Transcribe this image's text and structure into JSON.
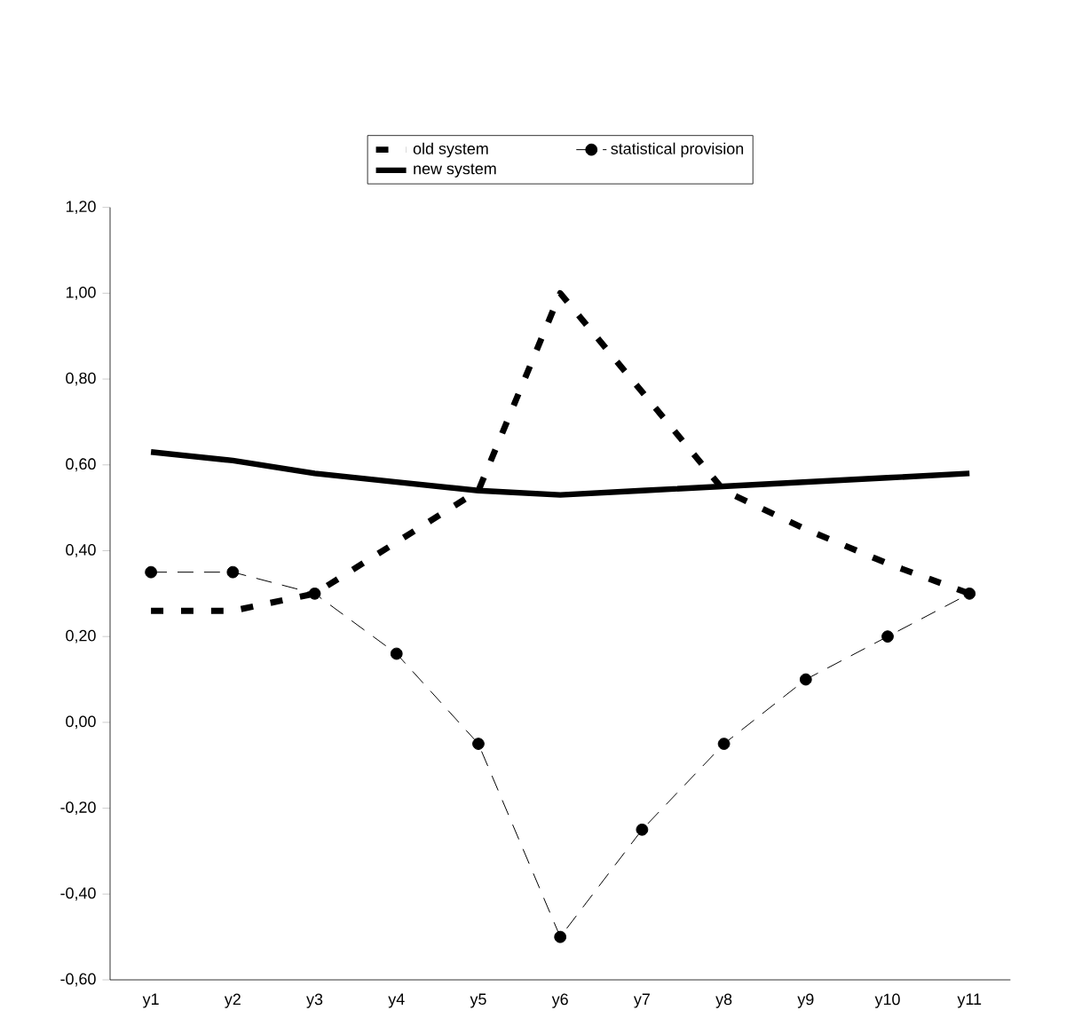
{
  "chart_data": {
    "type": "line",
    "categories": [
      "y1",
      "y2",
      "y3",
      "y4",
      "y5",
      "y6",
      "y7",
      "y8",
      "y9",
      "y10",
      "y11"
    ],
    "series": [
      {
        "name": "old system",
        "color": "#000000",
        "line_style": "dashed",
        "marker": "none",
        "values": [
          0.26,
          0.26,
          0.3,
          0.42,
          0.54,
          1.0,
          0.77,
          0.54,
          0.45,
          0.37,
          0.3
        ]
      },
      {
        "name": "statistical provision",
        "color": "#000000",
        "line_style": "dashed",
        "marker": "circle",
        "values": [
          0.35,
          0.35,
          0.3,
          0.16,
          -0.05,
          -0.5,
          -0.25,
          -0.05,
          0.1,
          0.2,
          0.3
        ]
      },
      {
        "name": "new system",
        "color": "#000000",
        "line_style": "solid",
        "marker": "none",
        "values": [
          0.63,
          0.61,
          0.58,
          0.56,
          0.54,
          0.53,
          0.54,
          0.55,
          0.56,
          0.57,
          0.58
        ]
      }
    ],
    "ylim": [
      -0.6,
      1.2
    ],
    "yticks": [
      {
        "value": -0.6,
        "label": "-0,60"
      },
      {
        "value": -0.4,
        "label": "-0,40"
      },
      {
        "value": -0.2,
        "label": "-0,20"
      },
      {
        "value": 0,
        "label": "0,00"
      },
      {
        "value": 0.2,
        "label": "0,20"
      },
      {
        "value": 0.4,
        "label": "0,40"
      },
      {
        "value": 0.6,
        "label": "0,60"
      },
      {
        "value": 0.8,
        "label": "0,80"
      },
      {
        "value": 1.0,
        "label": "1,00"
      },
      {
        "value": 1.2,
        "label": "1,20"
      }
    ],
    "legend": "top",
    "grid": false
  }
}
